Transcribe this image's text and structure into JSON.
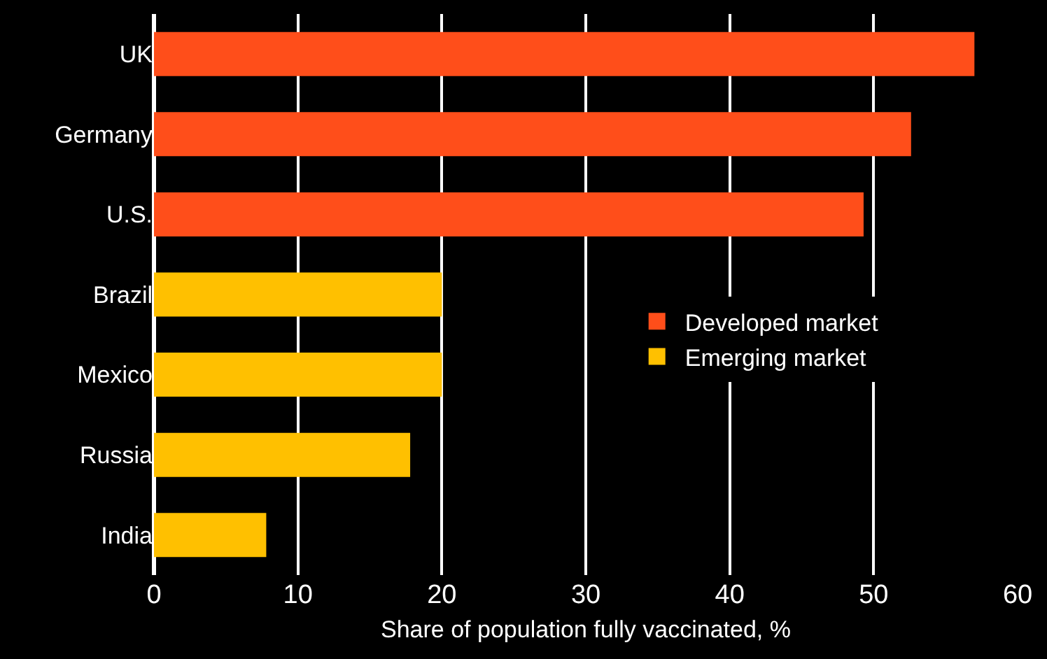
{
  "chart_data": {
    "type": "bar",
    "orientation": "horizontal",
    "xlabel": "Share of population fully vaccinated, %",
    "categories": [
      "UK",
      "Germany",
      "U.S.",
      "Brazil",
      "Mexico",
      "Russia",
      "India"
    ],
    "series": [
      {
        "name": "Developed market",
        "color": "#ff4e1a",
        "values": [
          57.0,
          52.6,
          49.3,
          null,
          null,
          null,
          null
        ]
      },
      {
        "name": "Emerging market",
        "color": "#ffc000",
        "values": [
          null,
          null,
          null,
          20.0,
          20.0,
          17.8,
          7.8
        ]
      }
    ],
    "xlim": [
      0,
      60
    ],
    "xticks": [
      0,
      10,
      20,
      30,
      40,
      50,
      60
    ],
    "grid": "x",
    "legend": "right"
  }
}
